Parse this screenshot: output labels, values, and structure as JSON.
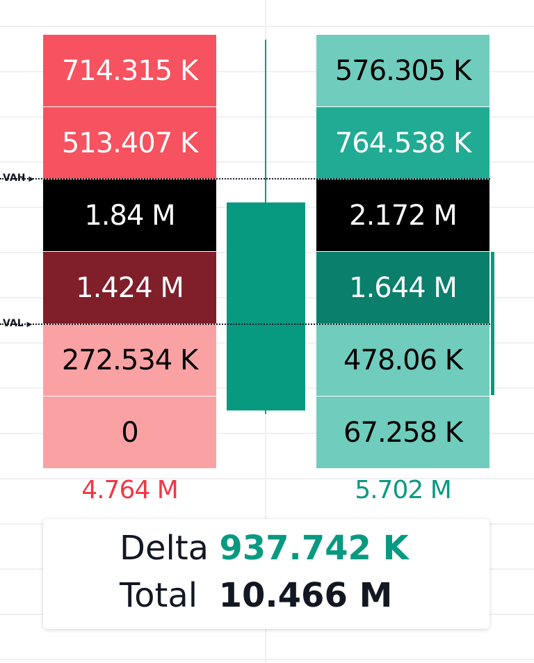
{
  "chart_data": {
    "type": "table",
    "title": "",
    "sell_volumes": [
      "714.315 K",
      "513.407 K",
      "1.84 M",
      "1.424 M",
      "272.534 K",
      "0"
    ],
    "buy_volumes": [
      "576.305 K",
      "764.538 K",
      "2.172 M",
      "1.644 M",
      "478.06 K",
      "67.258 K"
    ],
    "sell_total": "4.764 M",
    "buy_total": "5.702 M",
    "levels": {
      "vah": "VAH",
      "val": "VAL"
    },
    "summary": {
      "delta_label": "Delta",
      "delta_value": "937.742 K",
      "total_label": "Total",
      "total_value": "10.466 M"
    },
    "candle": {
      "direction": "up",
      "color": "#089981"
    },
    "sell_colors": [
      "#f7525f",
      "#f7525f",
      "#000000",
      "#801f2a",
      "#faa1a4",
      "#faa1a4"
    ],
    "buy_colors": [
      "#70ccbd",
      "#22ab94",
      "#000000",
      "#0a7f6c",
      "#70ccbd",
      "#70ccbd"
    ],
    "sell_text_colors": [
      "#ffffff",
      "#ffffff",
      "#ffffff",
      "#ffffff",
      "#000000",
      "#000000"
    ],
    "buy_text_colors": [
      "#000000",
      "#ffffff",
      "#ffffff",
      "#ffffff",
      "#000000",
      "#000000"
    ],
    "colors": {
      "sell_total": "#f23645",
      "buy_total": "#089981",
      "delta": "#089981"
    }
  }
}
